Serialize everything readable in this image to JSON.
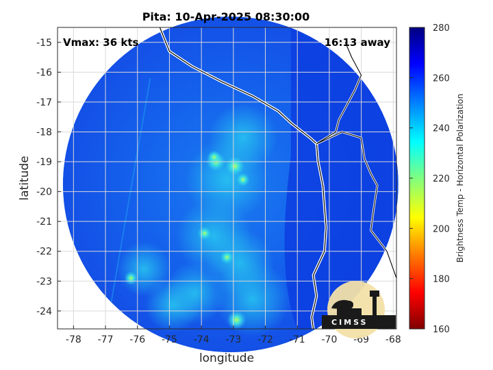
{
  "chart_data": {
    "type": "heatmap",
    "title": "Pita: 10-Apr-2025 08:30:00",
    "xlabel": "longitude",
    "ylabel": "latitude",
    "xlim": [
      -78.5,
      -67.9
    ],
    "ylim": [
      -24.6,
      -14.5
    ],
    "xticks": [
      -78,
      -77,
      -76,
      -75,
      -74,
      -73,
      -72,
      -71,
      -70,
      -69,
      -68
    ],
    "yticks": [
      -15,
      -16,
      -17,
      -18,
      -19,
      -20,
      -21,
      -22,
      -23,
      -24
    ],
    "grid": true,
    "annotations": {
      "vmax": "Vmax: 36 kts",
      "away": "16:13 away"
    },
    "colorbar": {
      "label": "Brightness Temp - Horizontal Polarization",
      "range": [
        160,
        280
      ],
      "ticks": [
        160,
        180,
        200,
        220,
        240,
        260,
        280
      ],
      "colors": [
        "#800000",
        "#ff0000",
        "#ff8000",
        "#ffff00",
        "#80ff80",
        "#00ffff",
        "#0080ff",
        "#0000ff",
        "#000080"
      ]
    },
    "swath": {
      "center": [
        -73.0,
        -19.6
      ],
      "radius_deg": 5.0,
      "dominant_value": 262
    },
    "hotspots": [
      {
        "lon": -73.55,
        "lat": -19.0,
        "value": 228
      },
      {
        "lon": -72.95,
        "lat": -19.15,
        "value": 232
      },
      {
        "lon": -73.6,
        "lat": -18.85,
        "value": 240
      },
      {
        "lon": -72.9,
        "lat": -24.3,
        "value": 230
      },
      {
        "lon": -72.7,
        "lat": -19.6,
        "value": 238
      },
      {
        "lon": -73.9,
        "lat": -21.4,
        "value": 242
      },
      {
        "lon": -73.2,
        "lat": -22.2,
        "value": 244
      },
      {
        "lon": -76.2,
        "lat": -22.9,
        "value": 246
      }
    ]
  },
  "logo": {
    "text": "CIMSS"
  }
}
